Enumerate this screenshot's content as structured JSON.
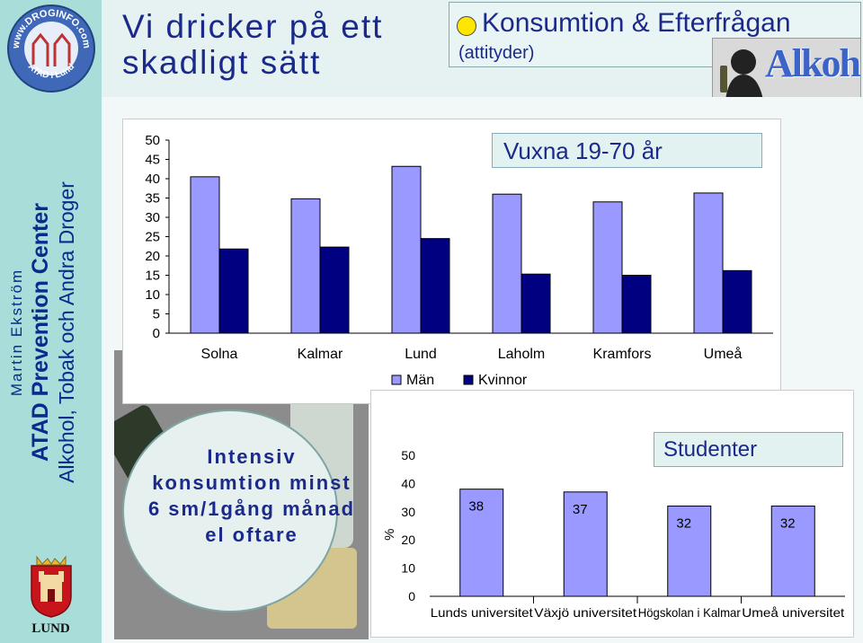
{
  "sidebar": {
    "logo_ring_text": "www.DROGINFO.com",
    "logo_bottom_text": "ATAD i Lund",
    "author": "Martin Ekström",
    "center_name": "ATAD Prevention Center",
    "subtitle": "Alkohol, Tobak och Andra Droger",
    "city": "LUND"
  },
  "header": {
    "title": "Vi dricker på ett skadligt sätt",
    "topic_title": "Konsumtion & Efterfrågan",
    "topic_subtitle": "(attityder)",
    "image_label": "Alkohol"
  },
  "bubble_text": "Intensiv konsumtion minst 6 sm/1gång månad el oftare",
  "colors": {
    "men": "#9999ff",
    "women": "#000080",
    "students": "#9999ff",
    "accent_text": "#1b2a8a"
  },
  "chart_data": [
    {
      "type": "bar",
      "title": "Vuxna 19-70 år",
      "categories": [
        "Solna",
        "Kalmar",
        "Lund",
        "Laholm",
        "Kramfors",
        "Umeå"
      ],
      "series": [
        {
          "name": "Män",
          "values": [
            40.5,
            34.8,
            43.2,
            36,
            34,
            36.3
          ]
        },
        {
          "name": "Kvinnor",
          "values": [
            21.8,
            22.3,
            24.5,
            15.3,
            15,
            16.2
          ]
        }
      ],
      "ylim": [
        0,
        50
      ],
      "yticks": [
        0,
        5,
        10,
        15,
        20,
        25,
        30,
        35,
        40,
        45,
        50
      ],
      "legend": "bottom",
      "grid": false
    },
    {
      "type": "bar",
      "title": "Studenter",
      "categories": [
        "Lunds universitet",
        "Växjö universitet",
        "Högskolan i Kalmar",
        "Umeå universitet"
      ],
      "series": [
        {
          "values": [
            38,
            37,
            32,
            32
          ]
        }
      ],
      "data_labels": [
        "38",
        "37",
        "32",
        "32"
      ],
      "ylabel": "%",
      "ylim": [
        0,
        50
      ],
      "yticks": [
        0,
        10,
        20,
        30,
        40,
        50
      ],
      "grid": false
    }
  ]
}
